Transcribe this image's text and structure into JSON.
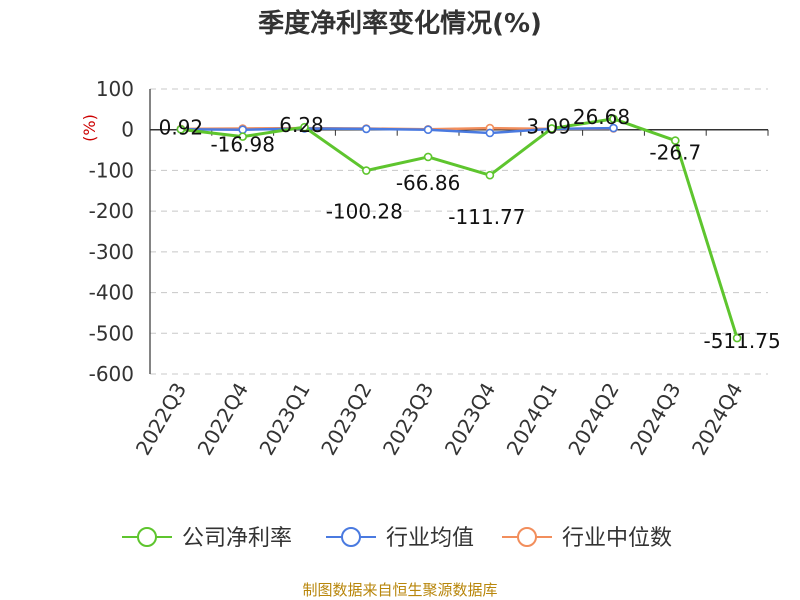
{
  "chart_data": {
    "type": "line",
    "title": "季度净利率变化情况(%)",
    "ylabel": "(%)",
    "categories": [
      "2022Q3",
      "2022Q4",
      "2023Q1",
      "2023Q2",
      "2023Q3",
      "2023Q4",
      "2024Q1",
      "2024Q2",
      "2024Q3",
      "2024Q4"
    ],
    "ylim": [
      -600,
      100
    ],
    "yticks": [
      100,
      0,
      -100,
      -200,
      -300,
      -400,
      -500,
      -600
    ],
    "grid": true,
    "legend_position": "bottom",
    "series": [
      {
        "name": "公司净利率",
        "color": "#5ec52e",
        "values": [
          0.92,
          -16.98,
          6.28,
          -100.28,
          -66.86,
          -111.77,
          3.09,
          26.68,
          -26.7,
          -511.75
        ],
        "labels": [
          "0.92",
          "-16.98",
          "6.28",
          "-100.28",
          "-66.86",
          "-111.77",
          "3.09",
          "26.68",
          "-26.7",
          "-511.75"
        ]
      },
      {
        "name": "行业均值",
        "color": "#4a7ae0",
        "values": [
          1,
          0,
          3,
          2,
          0,
          -8,
          2,
          4,
          null,
          null
        ]
      },
      {
        "name": "行业中位数",
        "color": "#f28e5c",
        "values": [
          2,
          3,
          4,
          3,
          1,
          4,
          2,
          3,
          null,
          null
        ]
      }
    ]
  },
  "footer": {
    "source": "制图数据来自恒生聚源数据库"
  }
}
